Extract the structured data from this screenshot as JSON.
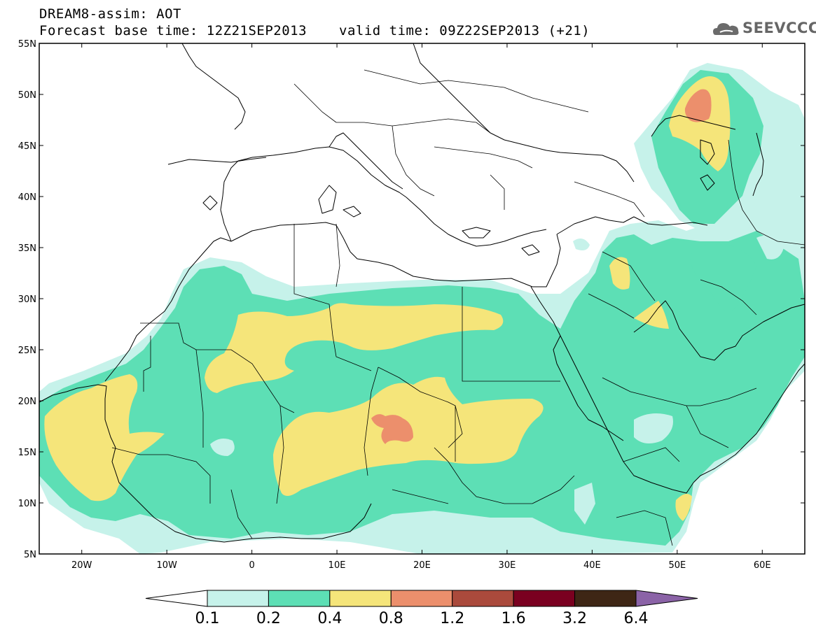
{
  "header": {
    "title": "DREAM8-assim: AOT",
    "base_time": "Forecast base time: 12Z21SEP2013",
    "valid_time": "valid time: 09Z22SEP2013 (+21)"
  },
  "logo": {
    "text": "SEEVCCC",
    "icon": "cloud-icon"
  },
  "map": {
    "lon_range": [
      -25,
      65
    ],
    "lat_range": [
      5,
      55
    ],
    "lat_ticks": [
      {
        "value": 55,
        "label": "55N"
      },
      {
        "value": 50,
        "label": "50N"
      },
      {
        "value": 45,
        "label": "45N"
      },
      {
        "value": 40,
        "label": "40N"
      },
      {
        "value": 35,
        "label": "35N"
      },
      {
        "value": 30,
        "label": "30N"
      },
      {
        "value": 25,
        "label": "25N"
      },
      {
        "value": 20,
        "label": "20N"
      },
      {
        "value": 15,
        "label": "15N"
      },
      {
        "value": 10,
        "label": "10N"
      },
      {
        "value": 5,
        "label": "5N"
      }
    ],
    "lon_ticks": [
      {
        "value": -20,
        "label": "20W"
      },
      {
        "value": -10,
        "label": "10W"
      },
      {
        "value": 0,
        "label": "0"
      },
      {
        "value": 10,
        "label": "10E"
      },
      {
        "value": 20,
        "label": "20E"
      },
      {
        "value": 30,
        "label": "30E"
      },
      {
        "value": 40,
        "label": "40E"
      },
      {
        "value": 50,
        "label": "50E"
      },
      {
        "value": 60,
        "label": "60E"
      }
    ]
  },
  "colorbar": {
    "boundaries": [
      "0.1",
      "0.2",
      "0.4",
      "0.8",
      "1.2",
      "1.6",
      "3.2",
      "6.4"
    ],
    "colors": [
      "#ffffff",
      "#c6f2ea",
      "#5ddfb5",
      "#f5e57a",
      "#ec8f6c",
      "#aa4a3c",
      "#7a0020",
      "#3e2615",
      "#8b63a7"
    ]
  },
  "colors": {
    "level_0.1": "#c6f2ea",
    "level_0.2": "#5ddfb5",
    "level_0.4": "#f5e57a",
    "level_0.8": "#ec8f6c"
  }
}
